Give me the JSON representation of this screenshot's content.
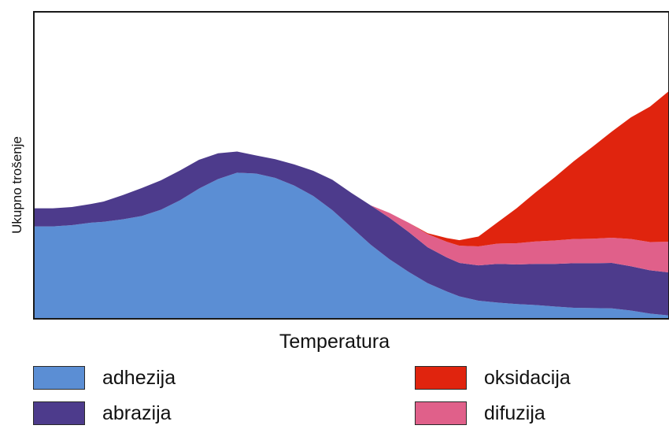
{
  "chart_data": {
    "type": "area",
    "title": "",
    "xlabel": "Temperatura",
    "ylabel": "Ukupno trošenje",
    "x": [
      0,
      3,
      6,
      9,
      11,
      14,
      17,
      20,
      23,
      26,
      29,
      32,
      35,
      38,
      41,
      44,
      47,
      50,
      53,
      56,
      59,
      62,
      65,
      67,
      70,
      73,
      76,
      79,
      82,
      85,
      88,
      91,
      94,
      97,
      100
    ],
    "xlim": [
      0,
      100
    ],
    "ylim": [
      0,
      100
    ],
    "stacked": true,
    "series": [
      {
        "name": "adhezija",
        "color": "#5b8ed4",
        "values": [
          30.1,
          30.1,
          30.5,
          31.3,
          31.6,
          32.4,
          33.5,
          35.5,
          38.6,
          42.4,
          45.5,
          47.6,
          47.3,
          45.9,
          43.4,
          40.0,
          35.4,
          29.8,
          24.2,
          19.4,
          15.3,
          11.6,
          8.9,
          7.3,
          5.9,
          5.3,
          4.8,
          4.5,
          4.0,
          3.6,
          3.5,
          3.4,
          2.7,
          1.7,
          1.1
        ]
      },
      {
        "name": "abrazija",
        "color": "#4d3b8c",
        "values": [
          5.9,
          5.9,
          5.9,
          6.1,
          6.6,
          7.9,
          9.1,
          9.6,
          9.7,
          9.4,
          8.4,
          6.9,
          5.9,
          6.1,
          6.9,
          8.2,
          9.9,
          11.2,
          12.8,
          13.5,
          13.0,
          11.7,
          11.1,
          10.9,
          11.5,
          12.6,
          12.9,
          13.4,
          13.9,
          14.5,
          14.6,
          14.8,
          14.4,
          14.1,
          14.0
        ]
      },
      {
        "name": "difuzija",
        "color": "#e0608a",
        "values": [
          0,
          0,
          0,
          0,
          0,
          0,
          0,
          0,
          0,
          0,
          0,
          0,
          0,
          0,
          0,
          0,
          0,
          0,
          0,
          1.6,
          3.0,
          4.3,
          5.1,
          5.6,
          6.2,
          6.6,
          6.9,
          7.3,
          7.6,
          7.9,
          8.0,
          8.2,
          8.9,
          9.2,
          10.0
        ]
      },
      {
        "name": "oksidacija",
        "color": "#e0240e",
        "values": [
          0,
          0,
          0,
          0,
          0,
          0,
          0,
          0,
          0,
          0,
          0,
          0,
          0,
          0,
          0,
          0,
          0,
          0,
          0,
          0,
          0,
          0.3,
          1.2,
          1.8,
          3.2,
          6.9,
          11.4,
          16.0,
          20.6,
          25.3,
          30.0,
          34.6,
          39.6,
          44.1,
          49.1
        ]
      }
    ],
    "grid": false,
    "legend": "bottom",
    "legend_entries": [
      "adhezija",
      "abrazija",
      "oksidacija",
      "difuzija"
    ]
  }
}
